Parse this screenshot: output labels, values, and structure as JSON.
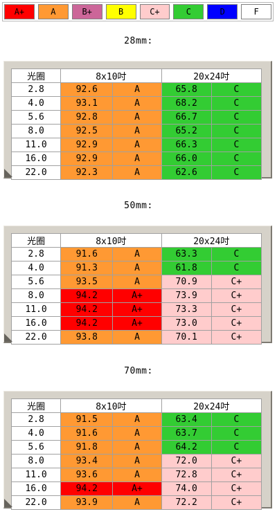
{
  "legend": [
    {
      "label": "A+",
      "color": "#ff0000"
    },
    {
      "label": "A",
      "color": "#ff9933"
    },
    {
      "label": "B+",
      "color": "#cc6699"
    },
    {
      "label": "B",
      "color": "#ffff00"
    },
    {
      "label": "C+",
      "color": "#ffcccc"
    },
    {
      "label": "C",
      "color": "#33cc33"
    },
    {
      "label": "D",
      "color": "#0000ff"
    },
    {
      "label": "F",
      "color": "#ffffff"
    }
  ],
  "grade_colors": {
    "A+": "#ff0000",
    "A": "#ff9933",
    "C+": "#ffcccc",
    "C": "#33cc33"
  },
  "table_headers": {
    "aperture": "光圈",
    "print_small": "8x10吋",
    "print_large": "20x24吋"
  },
  "sections": [
    {
      "title": "28mm:",
      "rows": [
        {
          "aperture": "2.8",
          "v1": "92.6",
          "g1": "A",
          "v2": "65.8",
          "g2": "C"
        },
        {
          "aperture": "4.0",
          "v1": "93.1",
          "g1": "A",
          "v2": "68.2",
          "g2": "C"
        },
        {
          "aperture": "5.6",
          "v1": "92.8",
          "g1": "A",
          "v2": "66.7",
          "g2": "C"
        },
        {
          "aperture": "8.0",
          "v1": "92.5",
          "g1": "A",
          "v2": "65.2",
          "g2": "C"
        },
        {
          "aperture": "11.0",
          "v1": "92.9",
          "g1": "A",
          "v2": "66.3",
          "g2": "C"
        },
        {
          "aperture": "16.0",
          "v1": "92.9",
          "g1": "A",
          "v2": "66.0",
          "g2": "C"
        },
        {
          "aperture": "22.0",
          "v1": "92.3",
          "g1": "A",
          "v2": "62.6",
          "g2": "C"
        }
      ]
    },
    {
      "title": "50mm:",
      "rows": [
        {
          "aperture": "2.8",
          "v1": "91.6",
          "g1": "A",
          "v2": "63.3",
          "g2": "C"
        },
        {
          "aperture": "4.0",
          "v1": "91.3",
          "g1": "A",
          "v2": "61.8",
          "g2": "C"
        },
        {
          "aperture": "5.6",
          "v1": "93.5",
          "g1": "A",
          "v2": "70.9",
          "g2": "C+"
        },
        {
          "aperture": "8.0",
          "v1": "94.2",
          "g1": "A+",
          "v2": "73.9",
          "g2": "C+"
        },
        {
          "aperture": "11.0",
          "v1": "94.2",
          "g1": "A+",
          "v2": "73.3",
          "g2": "C+"
        },
        {
          "aperture": "16.0",
          "v1": "94.2",
          "g1": "A+",
          "v2": "73.0",
          "g2": "C+"
        },
        {
          "aperture": "22.0",
          "v1": "93.8",
          "g1": "A",
          "v2": "70.1",
          "g2": "C+"
        }
      ]
    },
    {
      "title": "70mm:",
      "rows": [
        {
          "aperture": "2.8",
          "v1": "91.5",
          "g1": "A",
          "v2": "63.4",
          "g2": "C"
        },
        {
          "aperture": "4.0",
          "v1": "91.6",
          "g1": "A",
          "v2": "63.7",
          "g2": "C"
        },
        {
          "aperture": "5.6",
          "v1": "91.8",
          "g1": "A",
          "v2": "64.2",
          "g2": "C"
        },
        {
          "aperture": "8.0",
          "v1": "93.4",
          "g1": "A",
          "v2": "72.0",
          "g2": "C+"
        },
        {
          "aperture": "11.0",
          "v1": "93.6",
          "g1": "A",
          "v2": "72.8",
          "g2": "C+"
        },
        {
          "aperture": "16.0",
          "v1": "94.2",
          "g1": "A+",
          "v2": "74.0",
          "g2": "C+"
        },
        {
          "aperture": "22.0",
          "v1": "93.9",
          "g1": "A",
          "v2": "72.2",
          "g2": "C+"
        }
      ]
    }
  ]
}
